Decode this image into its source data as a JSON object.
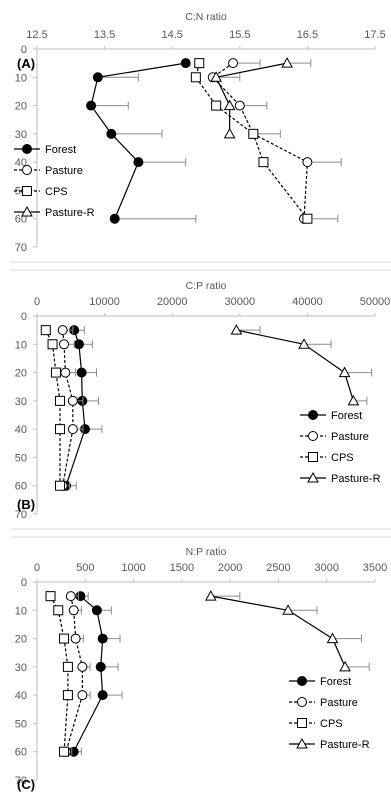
{
  "chart_data": [
    {
      "type": "line",
      "panel_label": "(A)",
      "xlabel": "C:N ratio",
      "xlim": [
        12.5,
        17.5
      ],
      "xticks": [
        "12.5",
        "13.5",
        "14.5",
        "15.5",
        "16.5",
        "17.5"
      ],
      "ylim": [
        0,
        70
      ],
      "yticks": [
        "0",
        "10",
        "20",
        "30",
        "40",
        "50",
        "60",
        "70"
      ],
      "legend_position": "bottom-left",
      "series": [
        {
          "name": "Forest",
          "marker": "filled-circle",
          "line": "solid",
          "y": [
            5,
            10,
            20,
            30,
            40,
            60
          ],
          "x": [
            14.7,
            13.4,
            13.3,
            13.6,
            14.0,
            13.65
          ],
          "err": [
            0.0,
            0.6,
            0.55,
            0.75,
            0.7,
            1.2
          ]
        },
        {
          "name": "Pasture",
          "marker": "open-circle",
          "line": "dashed",
          "y": [
            5,
            10,
            20,
            30,
            40,
            60
          ],
          "x": [
            15.4,
            15.1,
            15.5,
            15.7,
            16.5,
            16.45
          ],
          "err": [
            0.4,
            0.4,
            0.4,
            0.4,
            0.5,
            0.5
          ]
        },
        {
          "name": "CPS",
          "marker": "open-square",
          "line": "dashed",
          "y": [
            5,
            10,
            20,
            30,
            40,
            60
          ],
          "x": [
            14.9,
            14.85,
            15.15,
            15.7,
            15.85,
            16.5
          ],
          "err": [
            0.0,
            0.0,
            0.0,
            0.0,
            0.0,
            0.0
          ]
        },
        {
          "name": "Pasture-R",
          "marker": "open-triangle",
          "line": "solid",
          "y": [
            5,
            10,
            20,
            30
          ],
          "x": [
            16.2,
            15.15,
            15.35,
            15.35
          ],
          "err": [
            0.35,
            0.0,
            0.0,
            0.0
          ]
        }
      ]
    },
    {
      "type": "line",
      "panel_label": "(B)",
      "xlabel": "C:P ratio",
      "xlim": [
        0,
        50000
      ],
      "xticks": [
        "0",
        "10000",
        "20000",
        "30000",
        "40000",
        "50000"
      ],
      "ylim": [
        0,
        70
      ],
      "yticks": [
        "0",
        "10",
        "20",
        "30",
        "40",
        "50",
        "60",
        "70"
      ],
      "legend_position": "bottom-right",
      "series": [
        {
          "name": "Forest",
          "marker": "filled-circle",
          "line": "solid",
          "y": [
            5,
            10,
            20,
            30,
            40,
            60
          ],
          "x": [
            5500,
            6200,
            6600,
            6700,
            7100,
            4300
          ],
          "err": [
            1500,
            2000,
            2200,
            2400,
            2500,
            1500
          ]
        },
        {
          "name": "Pasture",
          "marker": "open-circle",
          "line": "dashed",
          "y": [
            5,
            10,
            20,
            30,
            40,
            60
          ],
          "x": [
            3800,
            4000,
            4200,
            5300,
            5300,
            3800
          ],
          "err": [
            1500,
            1500,
            1500,
            1500,
            1500,
            1000
          ]
        },
        {
          "name": "CPS",
          "marker": "open-square",
          "line": "dashed",
          "y": [
            5,
            10,
            20,
            30,
            40,
            60
          ],
          "x": [
            1300,
            2300,
            2800,
            3400,
            3400,
            3400
          ],
          "err": [
            0,
            0,
            0,
            0,
            0,
            0
          ]
        },
        {
          "name": "Pasture-R",
          "marker": "open-triangle",
          "line": "solid",
          "y": [
            5,
            10,
            20,
            30
          ],
          "x": [
            29500,
            39500,
            45500,
            46800
          ],
          "err": [
            3500,
            4000,
            4000,
            2000
          ]
        }
      ]
    },
    {
      "type": "line",
      "panel_label": "(C)",
      "xlabel": "N:P ratio",
      "xlim": [
        0,
        3500
      ],
      "xticks": [
        "0",
        "500",
        "1000",
        "1500",
        "2000",
        "2500",
        "3000",
        "3500"
      ],
      "ylim": [
        0,
        70
      ],
      "yticks": [
        "0",
        "10",
        "20",
        "30",
        "40",
        "50",
        "60",
        "70"
      ],
      "legend_position": "bottom-right",
      "series": [
        {
          "name": "Forest",
          "marker": "filled-circle",
          "line": "solid",
          "y": [
            5,
            10,
            20,
            30,
            40,
            60
          ],
          "x": [
            450,
            620,
            680,
            660,
            680,
            380
          ],
          "err": [
            80,
            150,
            180,
            180,
            200,
            80
          ]
        },
        {
          "name": "Pasture",
          "marker": "open-circle",
          "line": "dashed",
          "y": [
            5,
            10,
            20,
            30,
            40,
            60
          ],
          "x": [
            350,
            380,
            400,
            470,
            470,
            300
          ],
          "err": [
            80,
            80,
            80,
            80,
            80,
            60
          ]
        },
        {
          "name": "CPS",
          "marker": "open-square",
          "line": "dashed",
          "y": [
            5,
            10,
            20,
            30,
            40,
            60
          ],
          "x": [
            140,
            220,
            280,
            320,
            320,
            280
          ],
          "err": [
            0,
            0,
            0,
            0,
            0,
            0
          ]
        },
        {
          "name": "Pasture-R",
          "marker": "open-triangle",
          "line": "solid",
          "y": [
            5,
            10,
            20,
            30
          ],
          "x": [
            1800,
            2600,
            3060,
            3190
          ],
          "err": [
            300,
            300,
            300,
            250
          ]
        }
      ]
    }
  ]
}
